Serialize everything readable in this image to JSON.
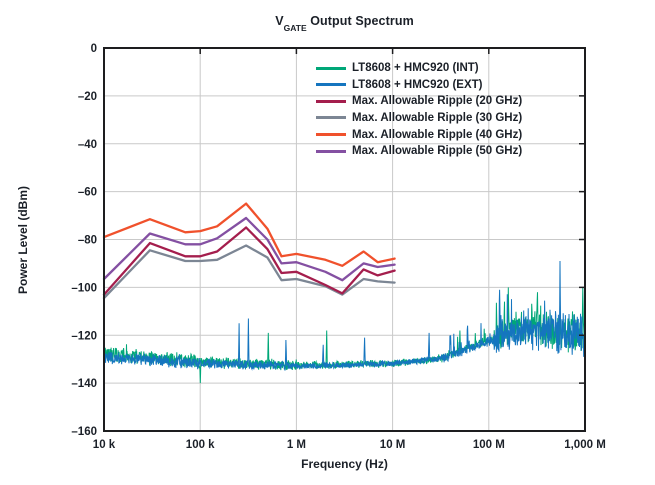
{
  "title": {
    "prefix": "V",
    "subscript": "GATE",
    "rest": " Output Spectrum"
  },
  "axes": {
    "x": {
      "title": "Frequency (Hz)",
      "scale": "log",
      "ticks": [
        {
          "label": "10 k",
          "log": 4
        },
        {
          "label": "100 k",
          "log": 5
        },
        {
          "label": "1 M",
          "log": 6
        },
        {
          "label": "10 M",
          "log": 7
        },
        {
          "label": "100 M",
          "log": 8
        },
        {
          "label": "1,000 M",
          "log": 9
        }
      ]
    },
    "y": {
      "title": "Power Level (dBm)",
      "ticks": [
        {
          "label": "0",
          "value": 0
        },
        {
          "label": "–20",
          "value": -20
        },
        {
          "label": "–40",
          "value": -40
        },
        {
          "label": "–60",
          "value": -60
        },
        {
          "label": "–80",
          "value": -80
        },
        {
          "label": "–100",
          "value": -100
        },
        {
          "label": "–120",
          "value": -120
        },
        {
          "label": "–140",
          "value": -140
        },
        {
          "label": "–160",
          "value": -160
        }
      ]
    }
  },
  "legend": [
    {
      "label": "LT8608 + HMC920 (INT)",
      "color": "#00a778"
    },
    {
      "label": "LT8608 + HMC920 (EXT)",
      "color": "#1575bf"
    },
    {
      "label": "Max. Allowable Ripple (20 GHz)",
      "color": "#a41e4d"
    },
    {
      "label": "Max. Allowable Ripple (30 GHz)",
      "color": "#7c8694"
    },
    {
      "label": "Max. Allowable Ripple (40 GHz)",
      "color": "#f0512c"
    },
    {
      "label": "Max. Allowable Ripple (50 GHz)",
      "color": "#8450a2"
    }
  ],
  "colors": {
    "background": "#ffffff",
    "grid": "#c9c9c9",
    "border": "#1d1d1f",
    "text": "#1b2028"
  },
  "chart_data": {
    "type": "line",
    "title": "V_GATE Output Spectrum",
    "xlabel": "Frequency (Hz)",
    "ylabel": "Power Level (dBm)",
    "x_scale": "log",
    "x_range_hz": [
      10000,
      1000000000
    ],
    "ylim": [
      -160,
      0
    ],
    "grid": true,
    "legend_position": "top-right-inside",
    "series": [
      {
        "name": "LT8608 + HMC920 (INT)",
        "color": "#00a778",
        "kind": "noise-floor",
        "description": "Noisy measured spectrum trace; mean level in dBm with random jitter band, estimated from plot",
        "segments": [
          {
            "lf": 4.0,
            "mean": -127.8,
            "amp": 3.4,
            "spike_prob": 0.02,
            "spike_max": 4
          },
          {
            "lf": 5.0,
            "mean": -131.2,
            "amp": 2.6,
            "spike_prob": 0.02,
            "spike_max": 4
          },
          {
            "lf": 6.0,
            "mean": -132.6,
            "amp": 1.8,
            "spike_prob": 0.01,
            "spike_max": 3
          },
          {
            "lf": 7.0,
            "mean": -131.8,
            "amp": 1.6,
            "spike_prob": 0.03,
            "spike_max": 3
          },
          {
            "lf": 7.5,
            "mean": -129.8,
            "amp": 2.2,
            "spike_prob": 0.08,
            "spike_max": 9
          },
          {
            "lf": 8.05,
            "mean": -121.0,
            "amp": 7.0,
            "spike_prob": 0.2,
            "spike_max": 12
          },
          {
            "lf": 8.45,
            "mean": -116.0,
            "amp": 8.5,
            "spike_prob": 0.22,
            "spike_max": 12
          },
          {
            "lf": 8.75,
            "mean": -119.0,
            "amp": 9.0,
            "spike_prob": 0.2,
            "spike_max": 11
          },
          {
            "lf": 9.0,
            "mean": -120.0,
            "amp": 8.5,
            "spike_prob": 0.18,
            "spike_max": 12
          }
        ],
        "spikes": [
          {
            "f": 100000,
            "p": -140
          },
          {
            "f": 510000,
            "p": -119
          },
          {
            "f": 2070000,
            "p": -118
          },
          {
            "f": 50000000,
            "p": -118
          },
          {
            "f": 160000000,
            "p": -100
          },
          {
            "f": 320000000,
            "p": -102
          },
          {
            "f": 950000000,
            "p": -100
          }
        ]
      },
      {
        "name": "LT8608 + HMC920 (EXT)",
        "color": "#1575bf",
        "kind": "noise-floor",
        "description": "Noisy measured spectrum trace; mean level in dBm with random jitter band, estimated from plot",
        "segments": [
          {
            "lf": 4.0,
            "mean": -129.2,
            "amp": 2.8,
            "spike_prob": 0.02,
            "spike_max": 3
          },
          {
            "lf": 5.0,
            "mean": -131.6,
            "amp": 2.2,
            "spike_prob": 0.02,
            "spike_max": 3
          },
          {
            "lf": 6.0,
            "mean": -133.0,
            "amp": 1.5,
            "spike_prob": 0.02,
            "spike_max": 3
          },
          {
            "lf": 7.0,
            "mean": -131.8,
            "amp": 1.5,
            "spike_prob": 0.04,
            "spike_max": 4
          },
          {
            "lf": 7.5,
            "mean": -129.8,
            "amp": 2.2,
            "spike_prob": 0.12,
            "spike_max": 11
          },
          {
            "lf": 8.05,
            "mean": -122.0,
            "amp": 8.0,
            "spike_prob": 0.25,
            "spike_max": 15
          },
          {
            "lf": 8.45,
            "mean": -118.0,
            "amp": 10.0,
            "spike_prob": 0.25,
            "spike_max": 14
          },
          {
            "lf": 8.75,
            "mean": -118.5,
            "amp": 10.0,
            "spike_prob": 0.25,
            "spike_max": 14
          },
          {
            "lf": 9.0,
            "mean": -121.0,
            "amp": 9.0,
            "spike_prob": 0.2,
            "spike_max": 12
          }
        ],
        "spikes": [
          {
            "f": 254000,
            "p": -115
          },
          {
            "f": 316000,
            "p": -113
          },
          {
            "f": 776000,
            "p": -122
          },
          {
            "f": 1900000,
            "p": -124
          },
          {
            "f": 5100000,
            "p": -121
          },
          {
            "f": 24000000,
            "p": -119
          },
          {
            "f": 40000000,
            "p": -120
          },
          {
            "f": 60000000,
            "p": -116
          },
          {
            "f": 130000000,
            "p": -101
          },
          {
            "f": 550000000,
            "p": -89
          }
        ]
      },
      {
        "name": "Max. Allowable Ripple (20 GHz)",
        "color": "#a41e4d",
        "kind": "ripple-limit",
        "points": [
          [
            10000,
            -103
          ],
          [
            30000,
            -81.5
          ],
          [
            70000,
            -87
          ],
          [
            100000,
            -87
          ],
          [
            150000,
            -85
          ],
          [
            300000,
            -75
          ],
          [
            500000,
            -84
          ],
          [
            700000,
            -94
          ],
          [
            1000000,
            -93.5
          ],
          [
            2000000,
            -99
          ],
          [
            3000000,
            -102.5
          ],
          [
            5000000,
            -92.5
          ],
          [
            7000000,
            -95
          ],
          [
            10500000,
            -93
          ]
        ]
      },
      {
        "name": "Max. Allowable Ripple (30 GHz)",
        "color": "#7c8694",
        "kind": "ripple-limit",
        "points": [
          [
            10000,
            -104.5
          ],
          [
            30000,
            -84.5
          ],
          [
            70000,
            -89
          ],
          [
            100000,
            -89
          ],
          [
            150000,
            -88.5
          ],
          [
            300000,
            -82.5
          ],
          [
            500000,
            -87.5
          ],
          [
            700000,
            -97
          ],
          [
            1000000,
            -96.5
          ],
          [
            2000000,
            -99.5
          ],
          [
            3000000,
            -103
          ],
          [
            5000000,
            -96.5
          ],
          [
            7000000,
            -97.5
          ],
          [
            10500000,
            -98
          ]
        ]
      },
      {
        "name": "Max. Allowable Ripple (40 GHz)",
        "color": "#f0512c",
        "kind": "ripple-limit",
        "points": [
          [
            10000,
            -79
          ],
          [
            30000,
            -71.5
          ],
          [
            70000,
            -77
          ],
          [
            100000,
            -76.5
          ],
          [
            150000,
            -74.5
          ],
          [
            300000,
            -65
          ],
          [
            500000,
            -75.5
          ],
          [
            700000,
            -87
          ],
          [
            1000000,
            -86
          ],
          [
            2000000,
            -88.5
          ],
          [
            3000000,
            -91
          ],
          [
            5000000,
            -85
          ],
          [
            7000000,
            -89.5
          ],
          [
            10500000,
            -88
          ]
        ]
      },
      {
        "name": "Max. Allowable Ripple (50 GHz)",
        "color": "#8450a2",
        "kind": "ripple-limit",
        "points": [
          [
            10000,
            -96.5
          ],
          [
            30000,
            -77.5
          ],
          [
            70000,
            -82
          ],
          [
            100000,
            -82
          ],
          [
            150000,
            -79.5
          ],
          [
            300000,
            -71
          ],
          [
            500000,
            -80
          ],
          [
            700000,
            -90
          ],
          [
            1000000,
            -89.5
          ],
          [
            2000000,
            -93.5
          ],
          [
            3000000,
            -97
          ],
          [
            5000000,
            -90
          ],
          [
            7000000,
            -91.5
          ],
          [
            10500000,
            -90.5
          ]
        ]
      }
    ]
  }
}
